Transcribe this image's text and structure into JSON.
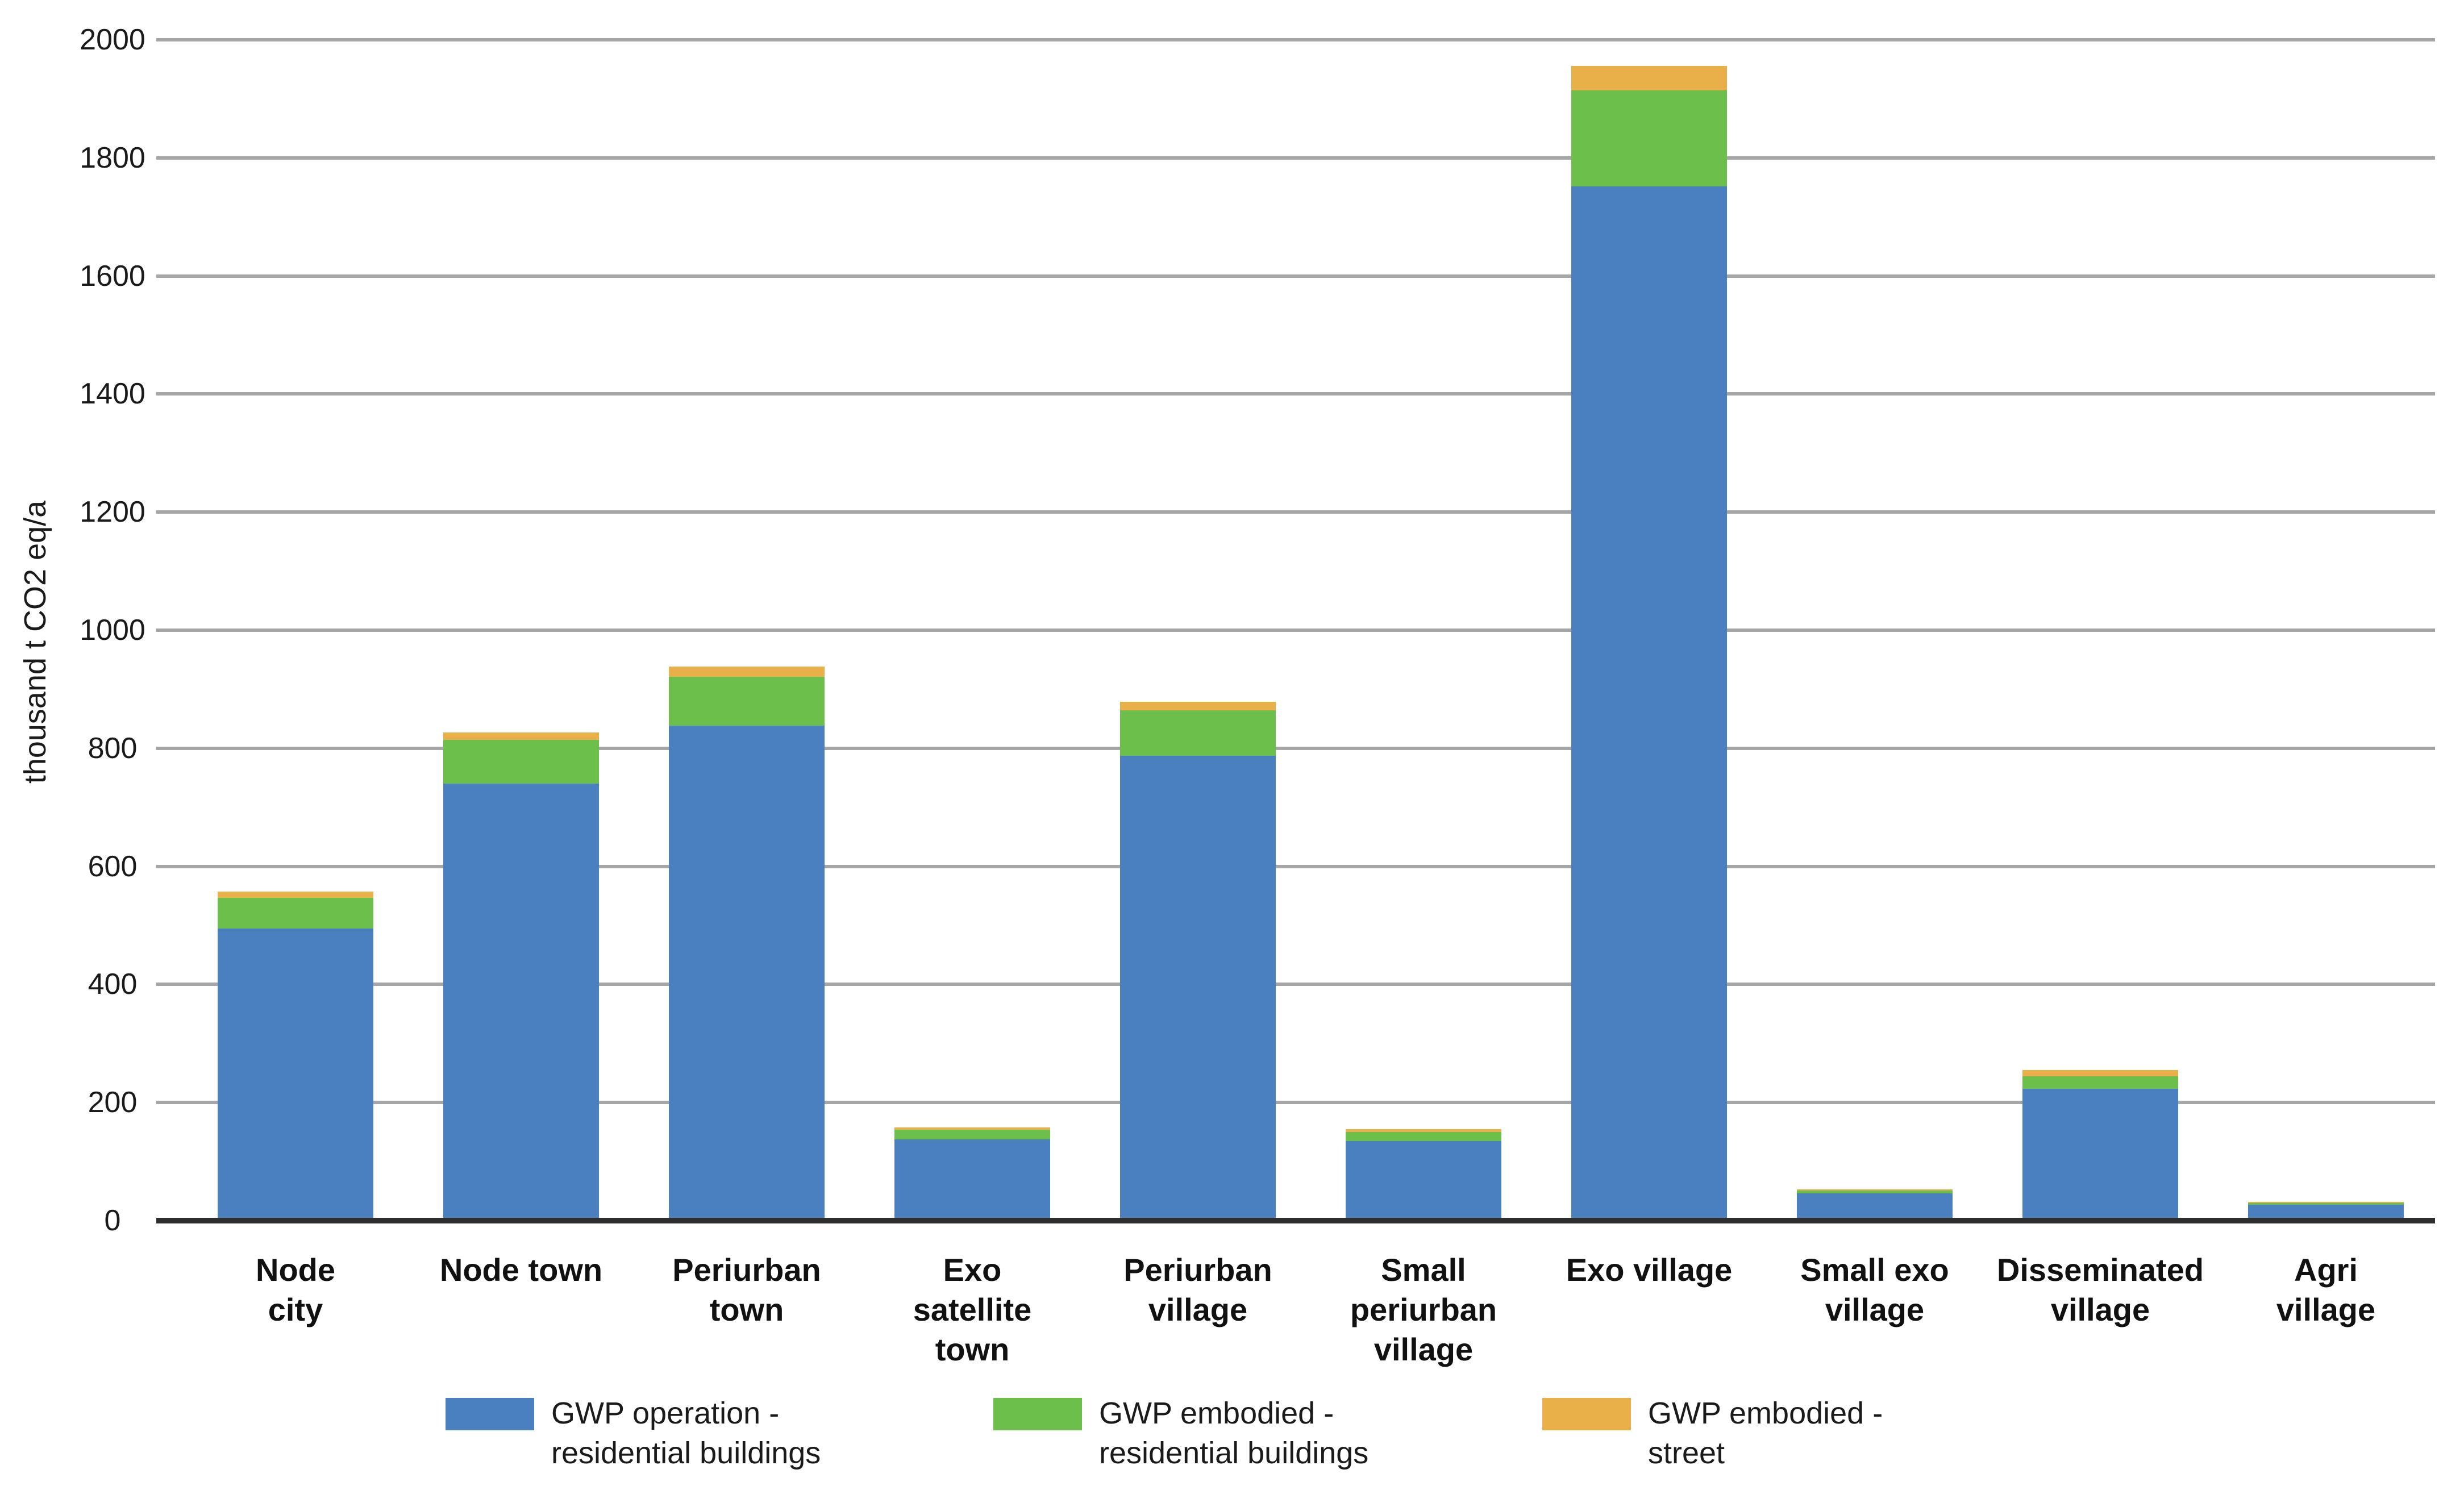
{
  "chart_data": {
    "type": "bar",
    "stacked": true,
    "title": "",
    "xlabel": "",
    "ylabel": "thousand t CO2 eq/a",
    "ylim": [
      0,
      2000
    ],
    "yticks": [
      0,
      200,
      400,
      600,
      800,
      1000,
      1200,
      1400,
      1600,
      1800,
      2000
    ],
    "grid": "horizontal",
    "legend_position": "bottom",
    "categories": [
      "Node\ncity",
      "Node town",
      "Periurban\ntown",
      "Exo\nsatellite\ntown",
      "Periurban\nvillage",
      "Small\nperiurban\nvillage",
      "Exo village",
      "Small exo\nvillage",
      "Disseminated\nvillage",
      "Agri\nvillage"
    ],
    "series": [
      {
        "name": "GWP operation -\nresidential buildings",
        "color": "#4a80c0",
        "values": [
          495,
          740,
          838,
          138,
          787,
          135,
          1752,
          46,
          223,
          27
        ]
      },
      {
        "name": "GWP embodied -\nresidential buildings",
        "color": "#6dbf4c",
        "values": [
          52,
          74,
          83,
          16,
          77,
          15,
          162,
          5,
          21,
          3
        ]
      },
      {
        "name": "GWP embodied -\nstreet",
        "color": "#e9b04a",
        "values": [
          10,
          13,
          17,
          4,
          15,
          5,
          42,
          2,
          11,
          2
        ]
      }
    ]
  },
  "colors": {
    "gridline": "#a6a6a6",
    "axis_line": "#2e2e2e",
    "text": "#1a1a1a",
    "background": "#ffffff"
  }
}
